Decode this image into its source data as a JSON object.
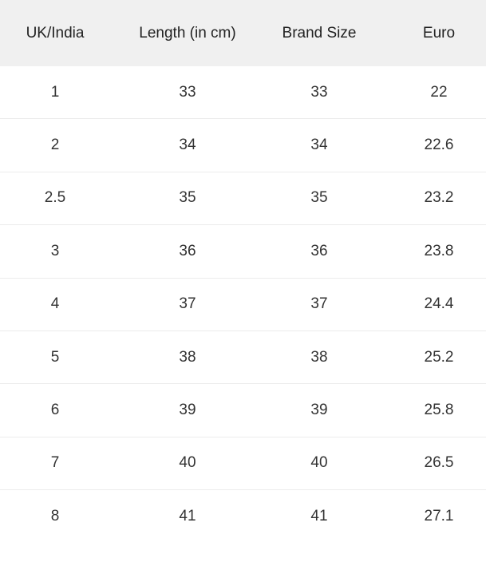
{
  "table": {
    "headers": [
      "UK/India",
      "Length (in cm)",
      "Brand Size",
      "Euro"
    ],
    "rows": [
      [
        "1",
        "33",
        "33",
        "22"
      ],
      [
        "2",
        "34",
        "34",
        "22.6"
      ],
      [
        "2.5",
        "35",
        "35",
        "23.2"
      ],
      [
        "3",
        "36",
        "36",
        "23.8"
      ],
      [
        "4",
        "37",
        "37",
        "24.4"
      ],
      [
        "5",
        "38",
        "38",
        "25.2"
      ],
      [
        "6",
        "39",
        "39",
        "25.8"
      ],
      [
        "7",
        "40",
        "40",
        "26.5"
      ],
      [
        "8",
        "41",
        "41",
        "27.1"
      ]
    ]
  },
  "colors": {
    "header_bg": "#f0f0f0",
    "divider": "#ececec",
    "text": "#333333"
  }
}
